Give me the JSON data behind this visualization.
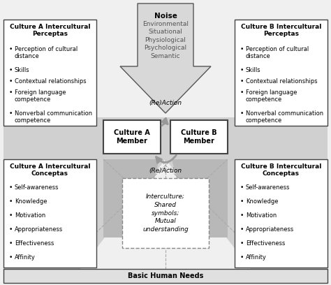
{
  "bg_color": "#f0f0f0",
  "box_bg": "#ffffff",
  "box_edge": "#444444",
  "gray_light": "#d0d0d0",
  "gray_mid": "#b8b8b8",
  "gray_dark": "#888888",
  "arrow_gray": "#999999",
  "noise_title": "Noise",
  "noise_items": [
    "Environmental",
    "Situational",
    "Physiological",
    "Psychological",
    "Semantic"
  ],
  "perceptas_title_a": "Culture A Intercultural\nPerceptas",
  "perceptas_title_b": "Culture B Intercultural\nPerceptas",
  "perceptas_items": [
    "Perception of cultural\ndistance",
    "Skills",
    "Contextual relationships",
    "Foreign language\ncompetence",
    "Nonverbal communication\ncompetence"
  ],
  "member_a": "Culture A\nMember",
  "member_b": "Culture B\nMember",
  "reaction_label": "(Re)Action",
  "conceptas_title_a": "Culture A Intercultural\nConceptas",
  "conceptas_title_b": "Culture B Intercultural\nConceptas",
  "conceptas_items": [
    "Self-awareness",
    "Knowledge",
    "Motivation",
    "Appropriateness",
    "Effectiveness",
    "Affinity"
  ],
  "interculture_text": "Interculture;\nShared\nsymbols;\nMutual\nunderstanding",
  "basic_needs": "Basic Human Needs"
}
